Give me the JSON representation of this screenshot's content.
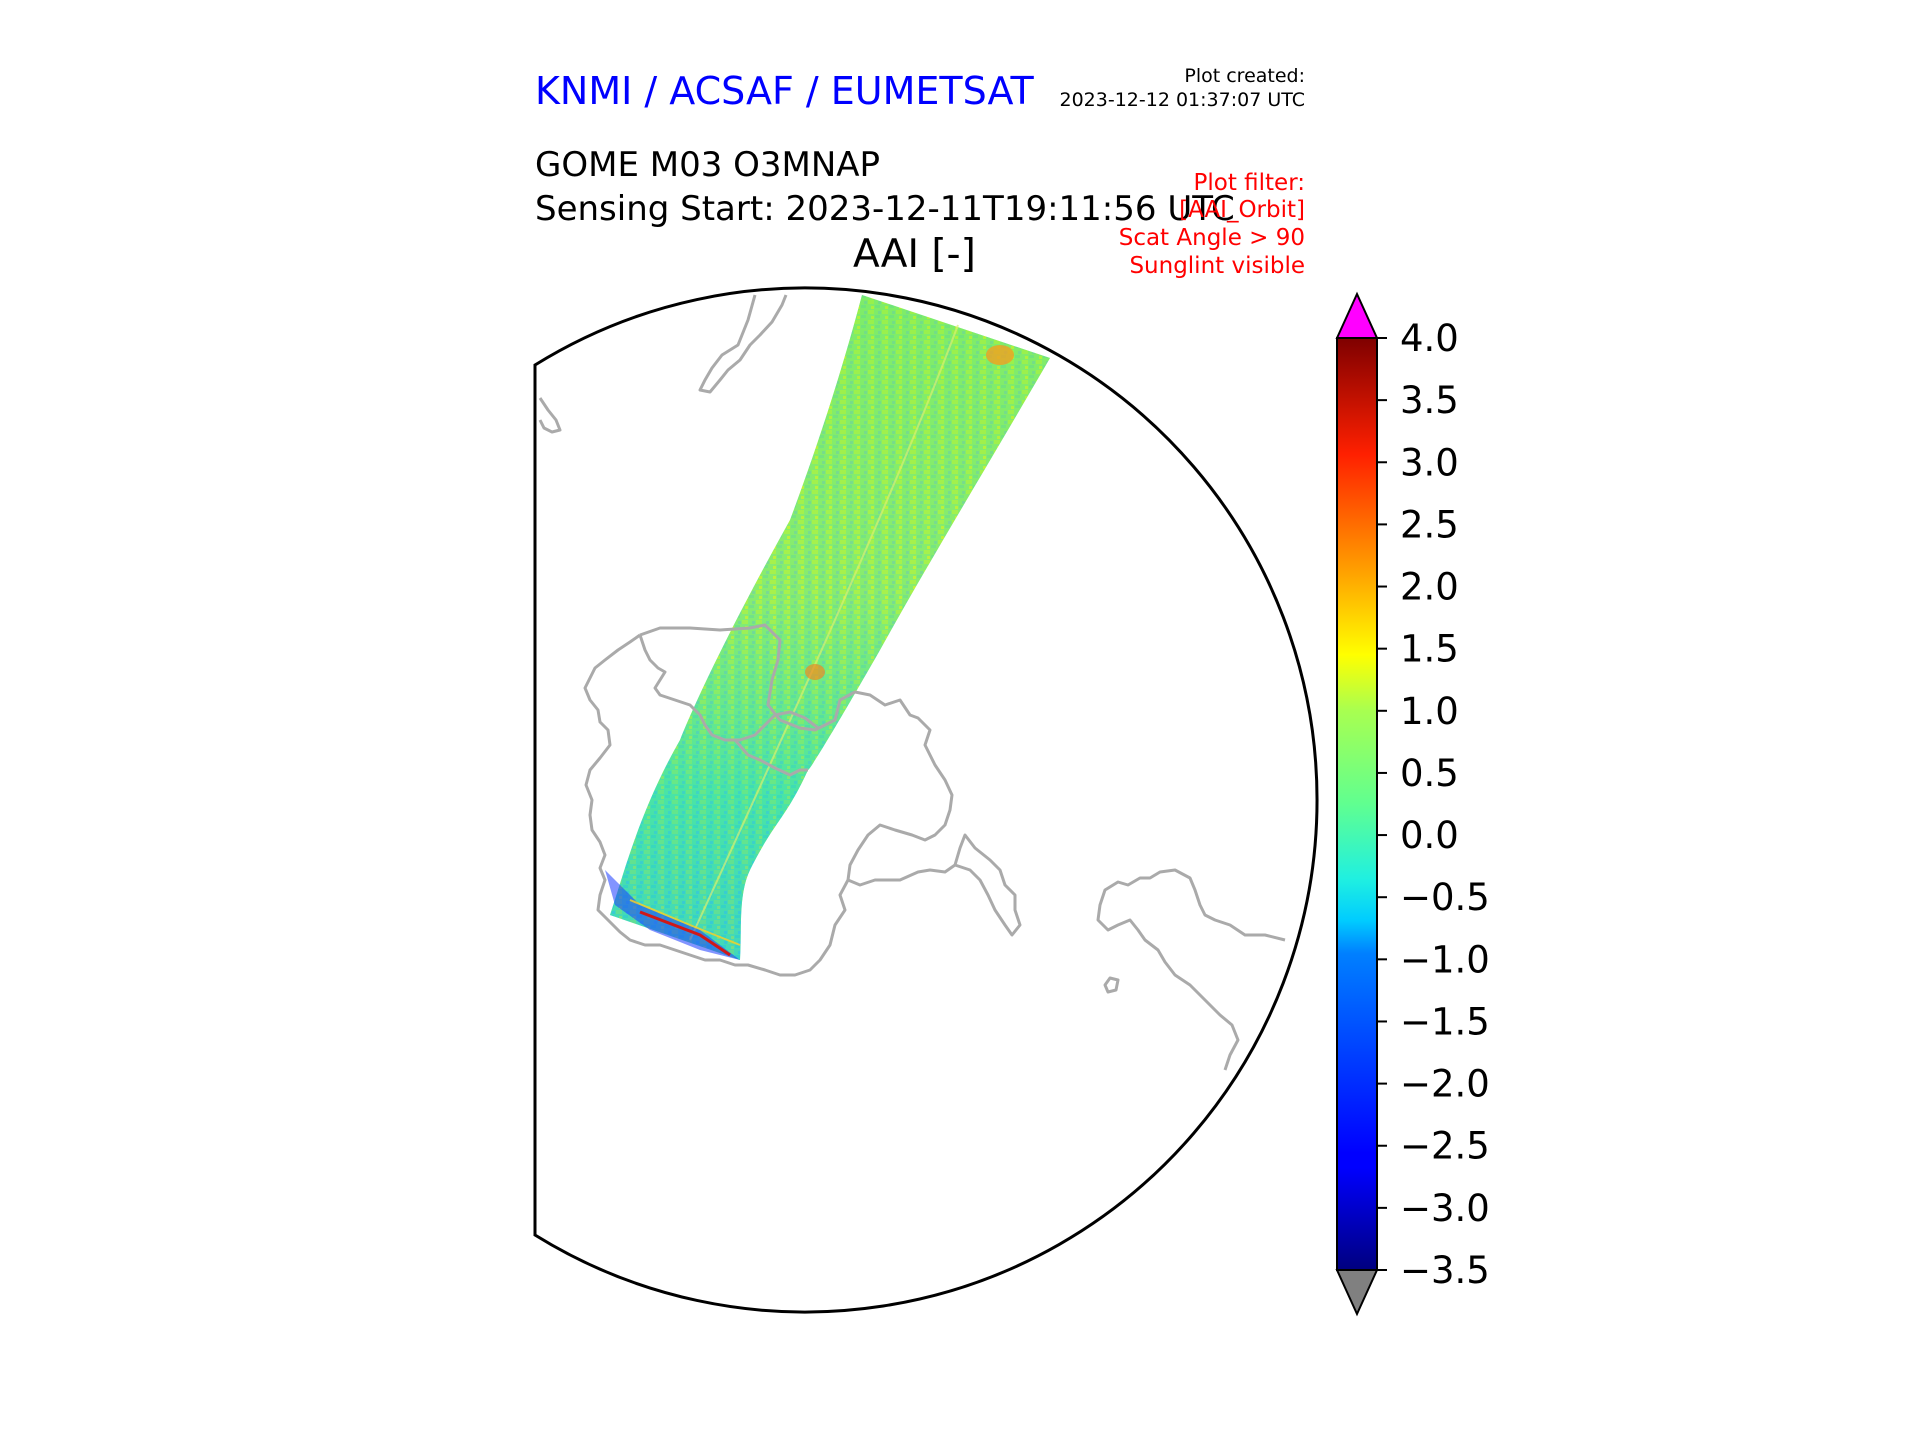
{
  "header": {
    "organization": "KNMI / ACSAF / EUMETSAT",
    "plot_created_label": "Plot created:",
    "plot_created_time": "2023-12-12 01:37:07 UTC",
    "product": "GOME M03 O3MNAP",
    "sensing_start": "Sensing Start: 2023-12-11T19:11:56 UTC",
    "title": "AAI [-]",
    "filters": [
      "Plot filter:",
      "[AAI_Orbit]",
      "Scat Angle > 90",
      "Sunglint visible"
    ]
  },
  "colorbar": {
    "variable": "AAI [-]",
    "range": [
      -3.5,
      4.0
    ],
    "ticks": [
      "4.0",
      "3.5",
      "3.0",
      "2.5",
      "2.0",
      "1.5",
      "1.0",
      "0.5",
      "0.0",
      "−0.5",
      "−1.0",
      "−1.5",
      "−2.0",
      "−2.5",
      "−3.0",
      "−3.5"
    ],
    "colormap": "jet",
    "over_color": "#ff00ff",
    "under_color": "#808080"
  },
  "map": {
    "projection": "polar stereographic (south pole)",
    "coastline_color": "#aaaaaa",
    "swath_dominant_value": 0.3
  }
}
